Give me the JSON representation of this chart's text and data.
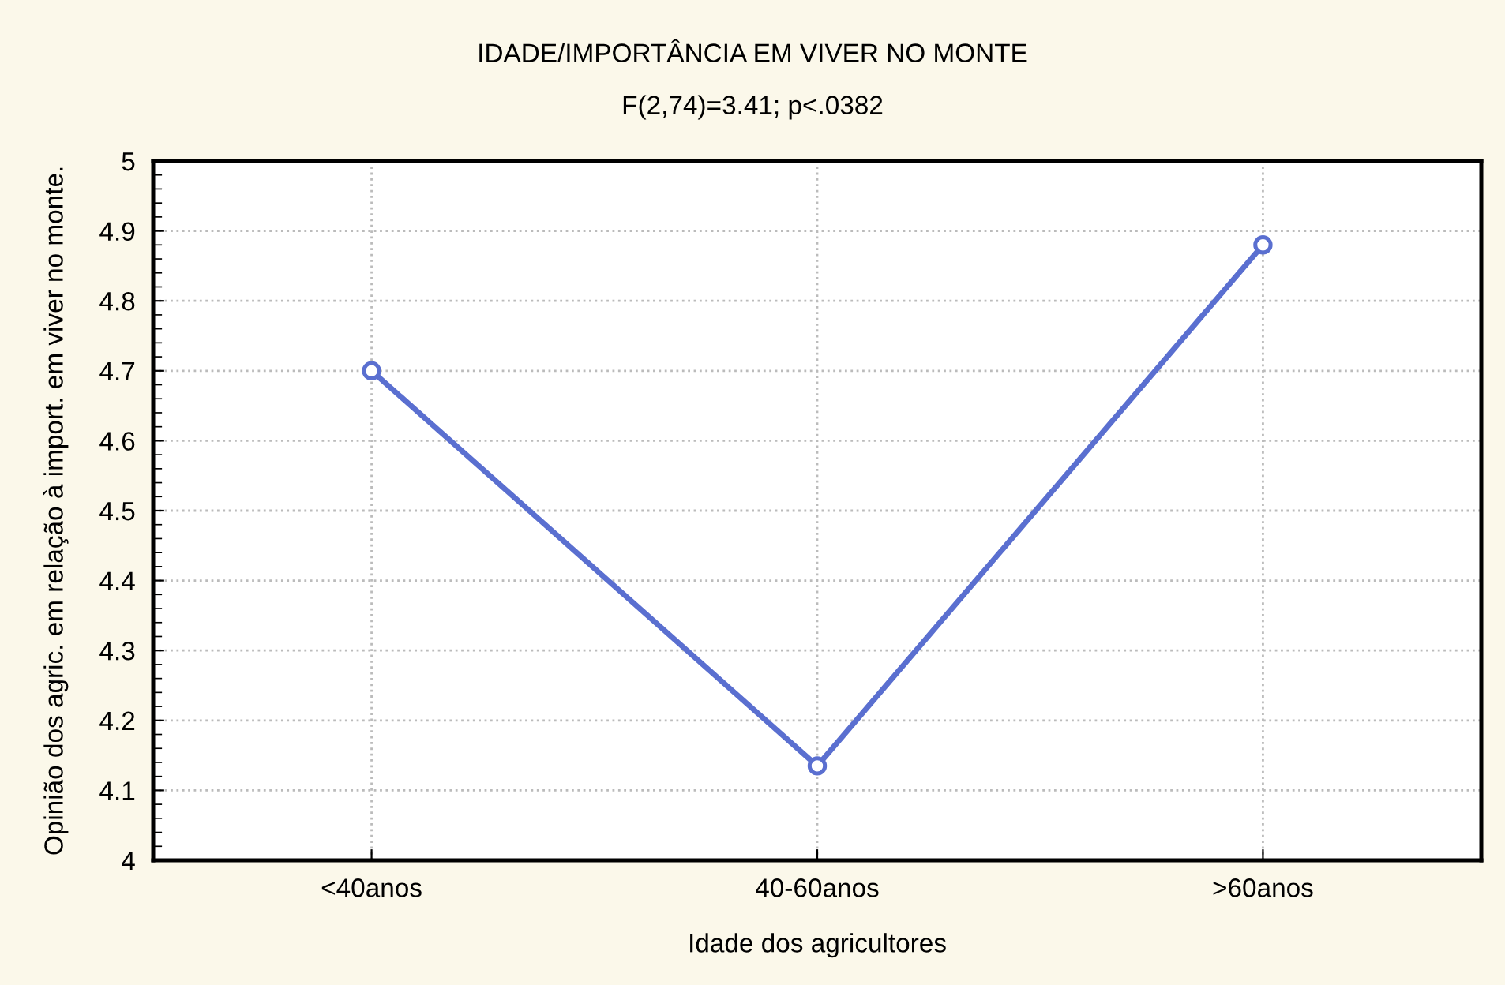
{
  "chart_data": {
    "type": "line",
    "title": "IDADE/IMPORTÂNCIA EM VIVER NO MONTE",
    "subtitle": "F(2,74)=3.41; p<.0382",
    "xlabel": "Idade dos agricultores",
    "ylabel": "Opinião dos agric. em relação à import. em viver no monte.",
    "categories": [
      "<40anos",
      "40-60anos",
      ">60anos"
    ],
    "series": [
      {
        "color": "#5a6fd0",
        "values": [
          4.7,
          4.135,
          4.88
        ]
      }
    ],
    "ylim": [
      4,
      5
    ],
    "yticks": [
      4,
      4.1,
      4.2,
      4.3,
      4.4,
      4.5,
      4.6,
      4.7,
      4.8,
      4.9,
      5
    ],
    "grid": true,
    "marker": "circle",
    "line_style": "solid"
  }
}
